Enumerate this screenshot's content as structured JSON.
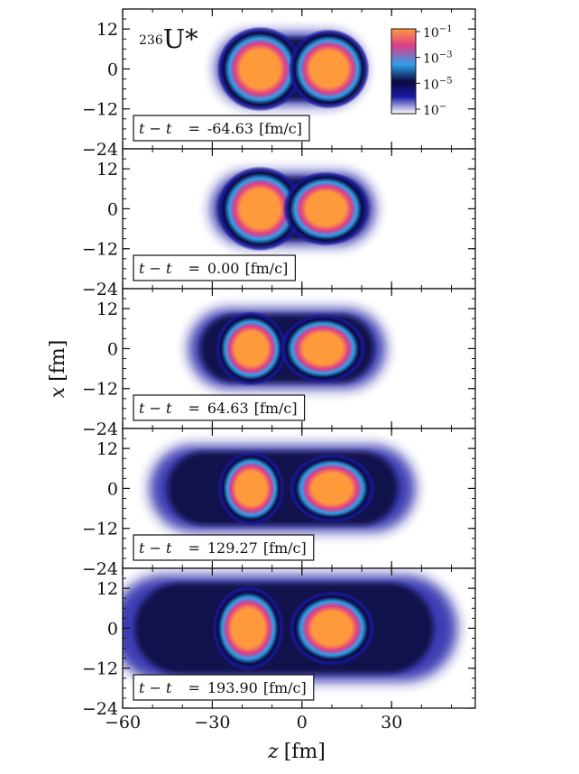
{
  "chart_data": {
    "type": "heatmap",
    "title": "",
    "nucleus": {
      "mass": "236",
      "symbol": "U*"
    },
    "xlabel": {
      "var": "z",
      "unit": "[fm]"
    },
    "ylabel": {
      "var": "x",
      "unit": "[fm]"
    },
    "xlim": [
      -60,
      58
    ],
    "ylim": [
      -24,
      18
    ],
    "x_ticks": [
      -60,
      -30,
      0,
      30
    ],
    "x_tick_labels": [
      "−60",
      "−30",
      "0",
      "30"
    ],
    "y_ticks": [
      -24,
      -12,
      0,
      12
    ],
    "y_tick_labels": [
      "−24",
      "−12",
      "0",
      "12"
    ],
    "colorbar": {
      "scale": "log",
      "colors": [
        "#ffffff",
        "#1a1aa6",
        "#0a0a40",
        "#2ea0e8",
        "#dc3c8c",
        "#ff9a3c"
      ],
      "ticks": [
        {
          "base": "10",
          "exp": "−1"
        },
        {
          "base": "10",
          "exp": "−3"
        },
        {
          "base": "10",
          "exp": "−5"
        },
        {
          "base": "10",
          "exp": "−"
        }
      ]
    },
    "panels": [
      {
        "time_label": "t − t",
        "time": "-64.63",
        "unit": "[fm/c]",
        "fragments": [
          {
            "z": -14,
            "x": 0,
            "rz": 9,
            "rx": 8
          },
          {
            "z": 9,
            "x": 0,
            "rz": 8.5,
            "rx": 7.5
          }
        ],
        "halo": {
          "z0": -27,
          "z1": 19,
          "rx": 11,
          "extent": 2
        }
      },
      {
        "time_label": "t − t",
        "time": "0.00",
        "unit": "[fm/c]",
        "fragments": [
          {
            "z": -14,
            "x": 0,
            "rz": 9,
            "rx": 8
          },
          {
            "z": 8,
            "x": 0,
            "rz": 9,
            "rx": 7
          }
        ],
        "halo": {
          "z0": -28,
          "z1": 22,
          "rx": 11,
          "extent": 2.5
        }
      },
      {
        "time_label": "t − t",
        "time": "64.63",
        "unit": "[fm/c]",
        "fragments": [
          {
            "z": -17,
            "x": 0,
            "rz": 7.5,
            "rx": 7
          },
          {
            "z": 7,
            "x": 0,
            "rz": 9,
            "rx": 6.5
          }
        ],
        "halo": {
          "z0": -34,
          "z1": 24,
          "rx": 12,
          "extent": 4
        }
      },
      {
        "time_label": "t − t",
        "time": "129.27",
        "unit": "[fm/c]",
        "fragments": [
          {
            "z": -17,
            "x": 0,
            "rz": 7,
            "rx": 7
          },
          {
            "z": 10,
            "x": 0,
            "rz": 9,
            "rx": 6.5
          }
        ],
        "halo": {
          "z0": -45,
          "z1": 32,
          "rx": 13,
          "extent": 6
        }
      },
      {
        "time_label": "t − t",
        "time": "193.90",
        "unit": "[fm/c]",
        "fragments": [
          {
            "z": -18,
            "x": 0,
            "rz": 7.5,
            "rx": 8
          },
          {
            "z": 10,
            "x": 0,
            "rz": 9,
            "rx": 7
          }
        ],
        "halo": {
          "z0": -56,
          "z1": 44,
          "rx": 16,
          "extent": 8
        }
      }
    ]
  }
}
